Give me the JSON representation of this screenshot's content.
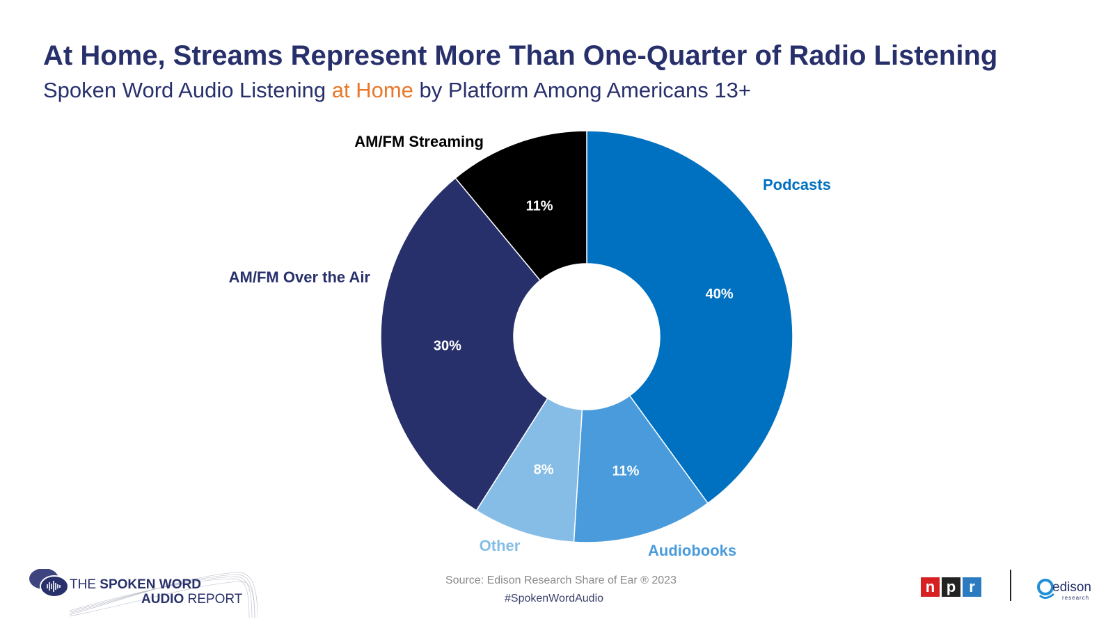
{
  "header": {
    "title": "At Home, Streams Represent More Than One-Quarter of Radio Listening",
    "subtitle_pre": "Spoken Word Audio Listening ",
    "subtitle_highlight": "at Home",
    "subtitle_post": " by Platform Among Americans 13+"
  },
  "colors": {
    "title": "#27306b",
    "highlight": "#e8782a",
    "podcasts": "#0070c0",
    "audiobooks": "#4a9bdc",
    "other": "#86bde6",
    "amfm_air": "#27306b",
    "amfm_streaming": "#000000"
  },
  "chart_data": {
    "type": "pie",
    "style": "donut",
    "title": "Spoken Word Audio Listening at Home by Platform Among Americans 13+",
    "slices": [
      {
        "label": "Podcasts",
        "value": 40,
        "display": "40%",
        "color": "#0070c0"
      },
      {
        "label": "Audiobooks",
        "value": 11,
        "display": "11%",
        "color": "#4a9bdc"
      },
      {
        "label": "Other",
        "value": 8,
        "display": "8%",
        "color": "#86bde6"
      },
      {
        "label": "AM/FM Over the Air",
        "value": 30,
        "display": "30%",
        "color": "#27306b"
      },
      {
        "label": "AM/FM Streaming",
        "value": 11,
        "display": "11%",
        "color": "#000000"
      }
    ]
  },
  "footer": {
    "source": "Source: Edison Research Share of Ear ® 2023",
    "hashtag": "#SpokenWordAudio",
    "report_line1_pre": "THE ",
    "report_line1_bold": "SPOKEN WORD",
    "report_line2_bold": "AUDIO",
    "report_line2_post": " REPORT",
    "npr_letters": [
      "n",
      "p",
      "r"
    ],
    "edison_word": "edison",
    "edison_sub": "research"
  }
}
